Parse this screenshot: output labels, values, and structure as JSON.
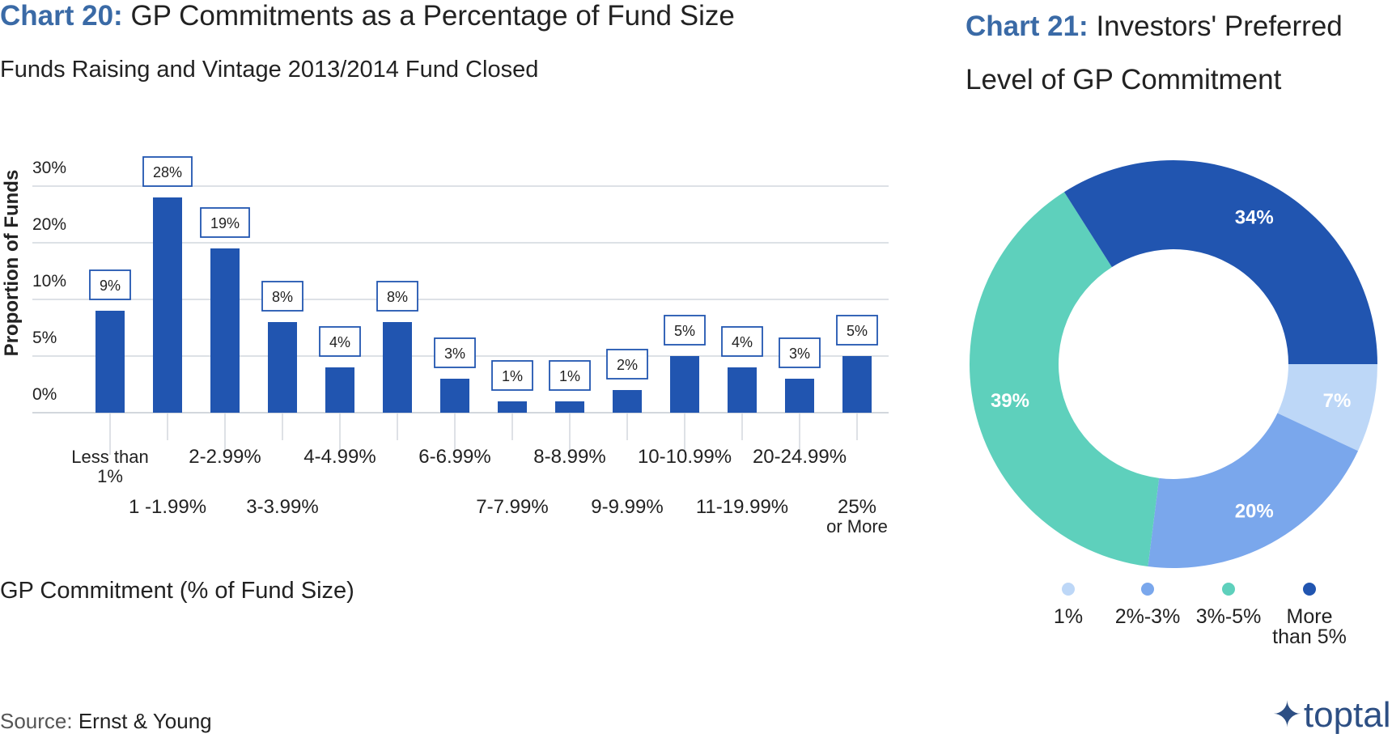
{
  "chart20": {
    "title_prefix": "Chart 20:",
    "title_text": "GP Commitments as a Percentage of Fund Size",
    "subtitle": "Funds Raising and Vintage 2013/2014 Fund Closed"
  },
  "chart21": {
    "title_prefix": "Chart 21:",
    "title_line1": "Investors' Preferred",
    "title_line2": "Level of GP Commitment"
  },
  "colors": {
    "bar": "#2155b0",
    "label_box": "#2155b0",
    "grid": "#d2d7dd",
    "axis_text": "#222222"
  },
  "chart_data": [
    {
      "type": "bar",
      "ylabel": "Proportion of Funds",
      "xlabel": "GP Commitment (% of Fund Size)",
      "y_ticks": [
        "0%",
        "5%",
        "10%",
        "20%",
        "30%"
      ],
      "categories": [
        "Less than\n1%",
        "1 -1.99%",
        "2-2.99%",
        "3-3.99%",
        "4-4.99%",
        "",
        "6-6.99%",
        "7-7.99%",
        "8-8.99%",
        "9-9.99%",
        "10-10.99%",
        "11-19.99%",
        "20-24.99%",
        "25%\nor More"
      ],
      "values": [
        9,
        28,
        19,
        8,
        4,
        8,
        3,
        1,
        1,
        2,
        5,
        4,
        3,
        5
      ],
      "data_labels": [
        "9%",
        "28%",
        "19%",
        "8%",
        "4%",
        "8%",
        "3%",
        "1%",
        "1%",
        "2%",
        "5%",
        "4%",
        "3%",
        "5%"
      ],
      "scale": "piecewise",
      "scale_points": [
        [
          0,
          0
        ],
        [
          5,
          1
        ],
        [
          10,
          2
        ],
        [
          20,
          3
        ],
        [
          30,
          4
        ]
      ],
      "grid": true
    },
    {
      "type": "pie",
      "donut": true,
      "slices": [
        {
          "name": "1%",
          "value": 7,
          "label": "7%",
          "color": "#bdd7f7"
        },
        {
          "name": "2%-3%",
          "value": 20,
          "label": "20%",
          "color": "#7aa7ec"
        },
        {
          "name": "3%-5%",
          "value": 39,
          "label": "39%",
          "color": "#5ed0bc"
        },
        {
          "name": "More\nthan 5%",
          "value": 34,
          "label": "34%",
          "color": "#2155b0"
        }
      ],
      "legend_position": "bottom"
    }
  ],
  "source": {
    "prefix": "Source:",
    "name": "Ernst & Young"
  },
  "logo": {
    "mark": "✦",
    "text": "toptal"
  }
}
